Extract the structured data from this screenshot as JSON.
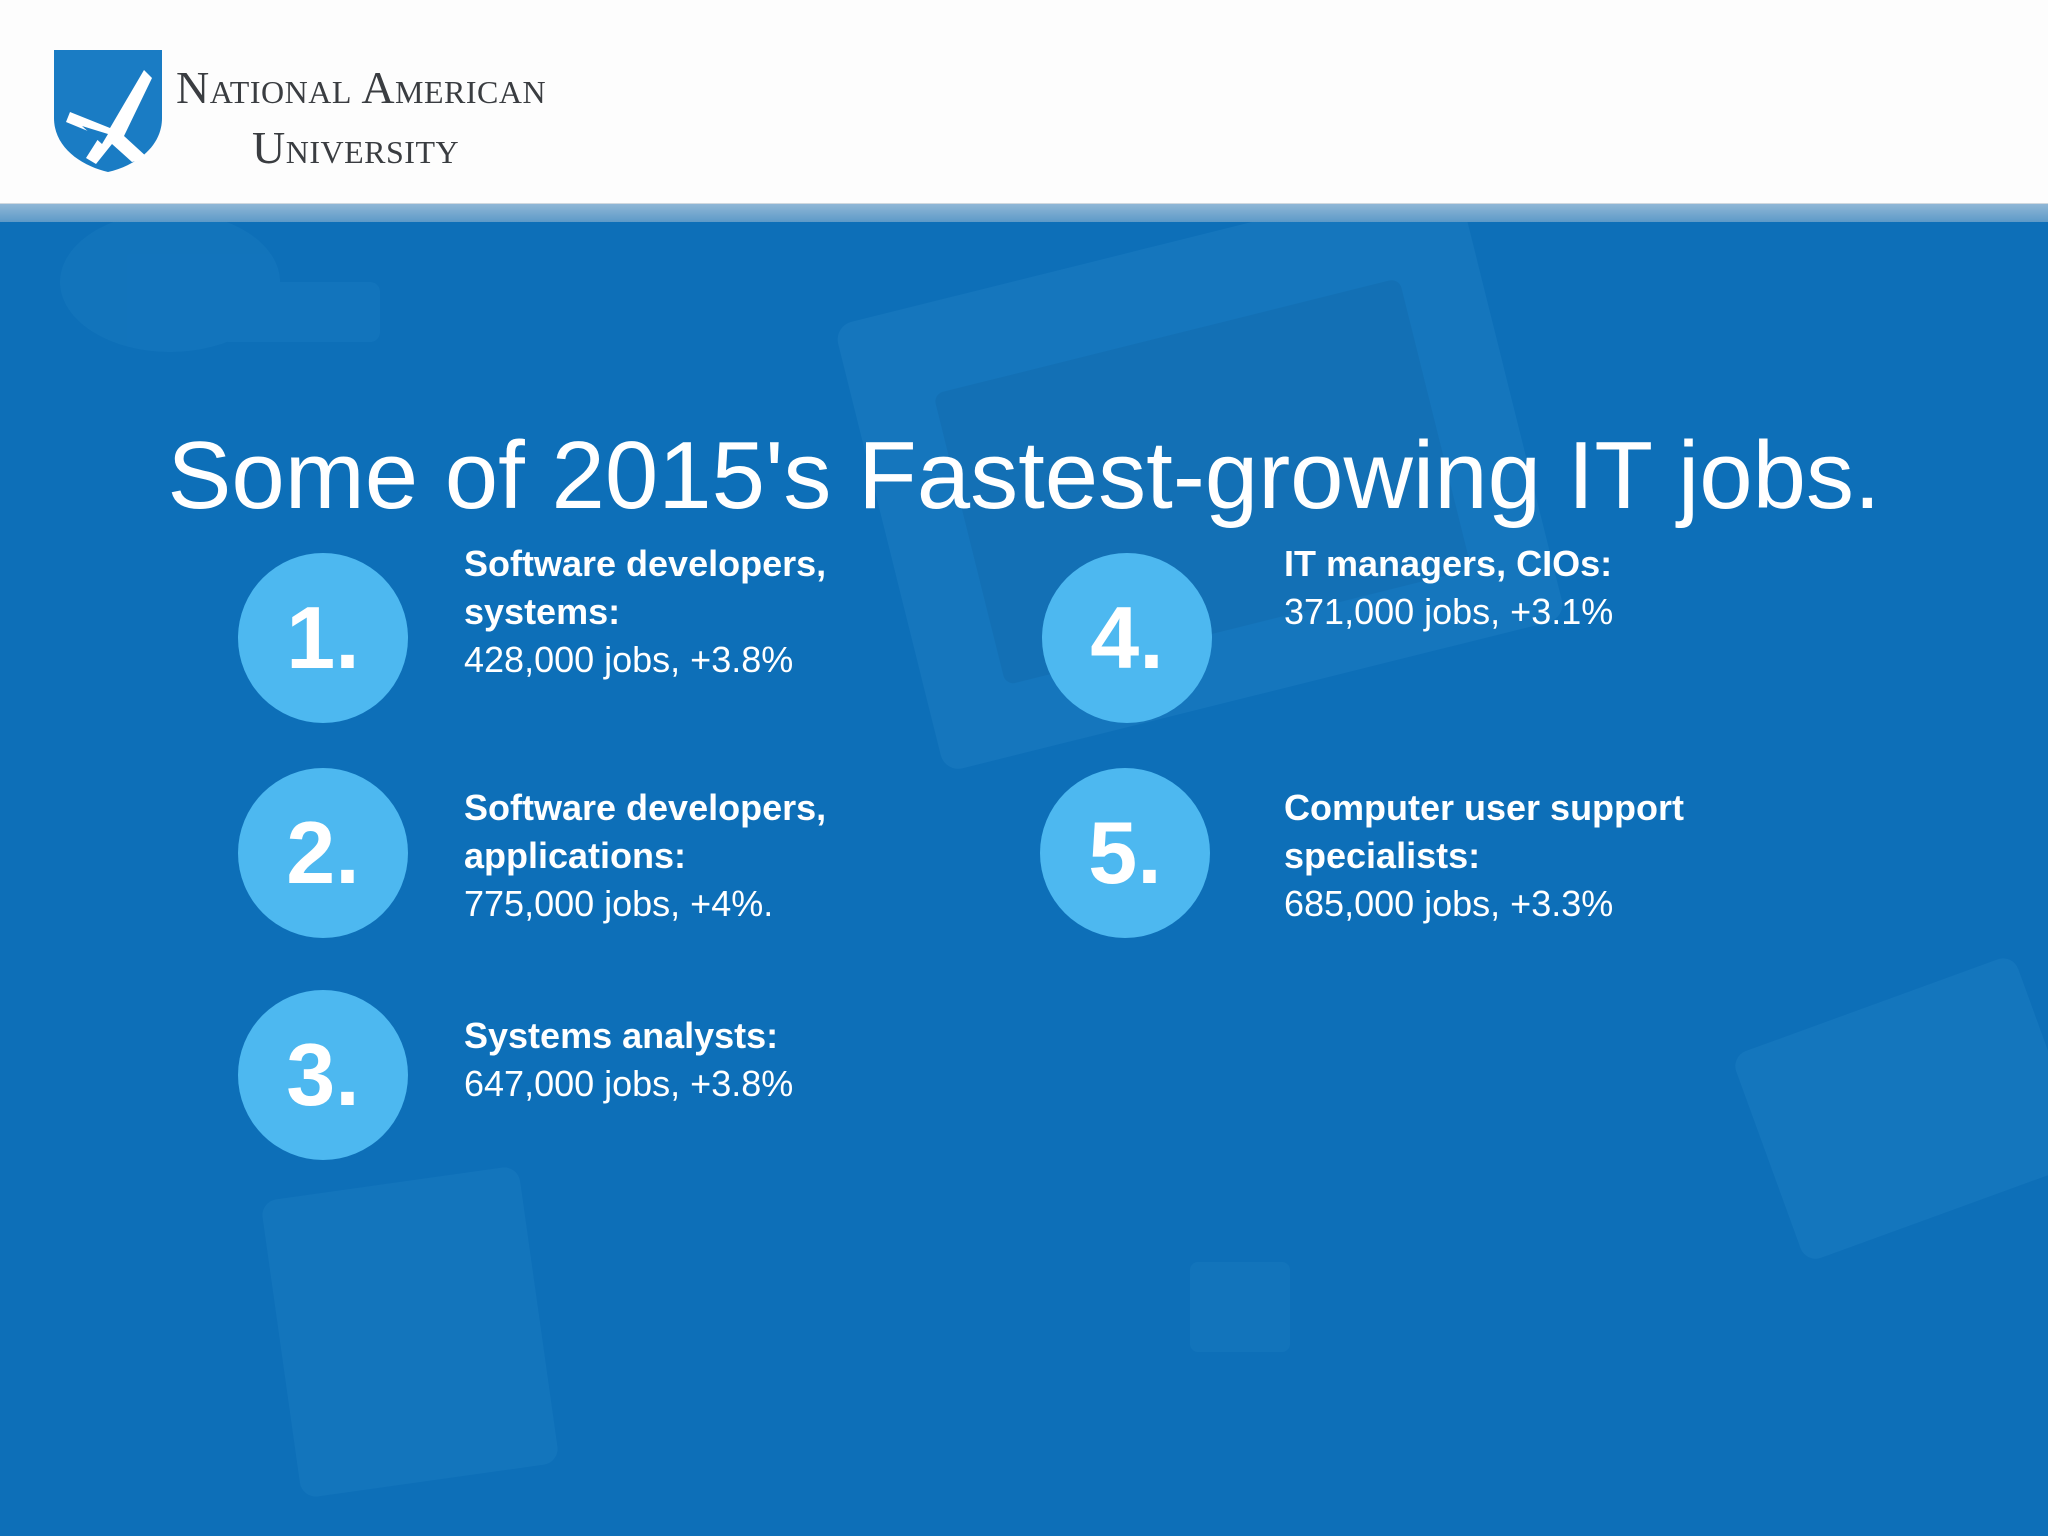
{
  "logo": {
    "line1": "National American",
    "line2": "University"
  },
  "title": "Some of 2015's Fastest-growing IT jobs.",
  "items": [
    {
      "number": "1.",
      "name": "Software developers, systems:",
      "stat": "428,000 jobs, +3.8%"
    },
    {
      "number": "2.",
      "name": "Software developers, applications:",
      "stat": "775,000 jobs, +4%."
    },
    {
      "number": "3.",
      "name": "Systems analysts:",
      "stat": "647,000 jobs, +3.8%"
    },
    {
      "number": "4.",
      "name": "IT managers, CIOs:",
      "stat": "371,000 jobs, +3.1%"
    },
    {
      "number": "5.",
      "name": "Computer user support specialists:",
      "stat": "685,000 jobs, +3.3%"
    }
  ],
  "colors": {
    "background": "#0d6fb8",
    "badge": "#4db8f0",
    "header": "#fdfdfd",
    "logo_shield": "#1a7cc4"
  },
  "icons": {
    "logo": "eagle-shield-icon"
  }
}
